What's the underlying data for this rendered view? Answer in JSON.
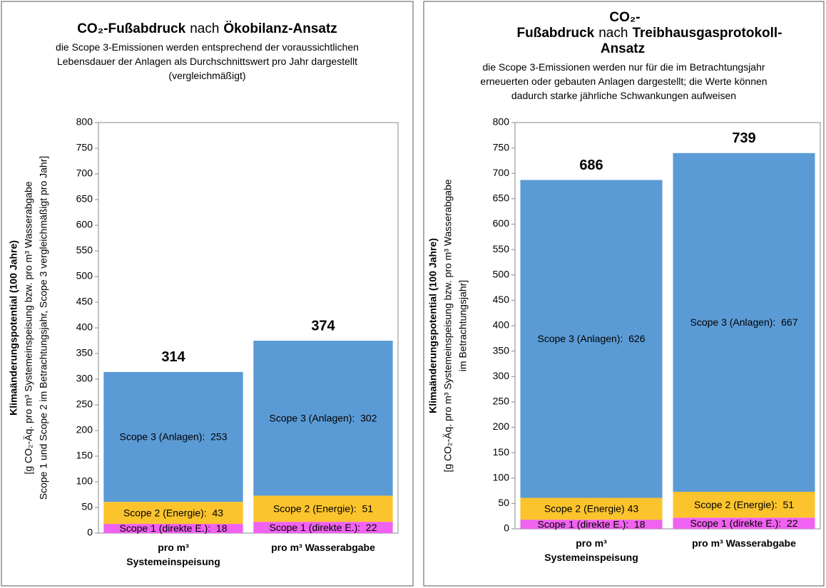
{
  "chart_data": [
    {
      "type": "stacked_bar",
      "title": [
        "CO₂-Fußabdruck",
        "nach",
        "Ökobilanz-Ansatz"
      ],
      "subtitle": "die Scope 3-Emissionen werden entsprechend der voraussichtlichen Lebensdauer der Anlagen als Durchschnittswert pro Jahr dargestellt (vergleichmäßigt)",
      "ylabel": [
        "Klimaänderungspotential (100 Jahre)",
        "[g CO₂-Äq. pro m³ Systemeinspeisung bzw. pro m³ Wasserabgabe",
        "Scope 1 und Scope 2 im Betrachtungsjahr, Scope 3 vergleichmäßigt pro Jahr]"
      ],
      "categories": [
        "pro m³ Systemeinspeisung",
        "pro m³ Wasserabgabe"
      ],
      "series": [
        {
          "color": "#f062f0",
          "values": [
            18,
            22
          ],
          "value_labels": [
            "Scope 1 (direkte E.):  18",
            "Scope 1 (direkte E.):  22"
          ]
        },
        {
          "color": "#fcc42c",
          "values": [
            43,
            51
          ],
          "value_labels": [
            "Scope 2 (Energie):  43",
            "Scope 2 (Energie):  51"
          ]
        },
        {
          "color": "#5b9bd5",
          "values": [
            253,
            302
          ],
          "value_labels": [
            "Scope 3 (Anlagen):  253",
            "Scope 3 (Anlagen):  302"
          ]
        }
      ],
      "totals": [
        314,
        374
      ],
      "ylim": [
        0,
        800
      ],
      "yticks": [
        0,
        50,
        100,
        150,
        200,
        250,
        300,
        350,
        400,
        450,
        500,
        550,
        600,
        650,
        700,
        750,
        800
      ],
      "grid": false
    },
    {
      "type": "stacked_bar",
      "title": [
        "CO₂-Fußabdruck",
        "nach",
        "Treibhausgasprotokoll-Ansatz"
      ],
      "subtitle": "die Scope 3-Emissionen werden nur für die im Betrachtungsjahr erneuerten oder gebauten Anlagen dargestellt; die Werte können dadurch starke jährliche Schwankungen aufweisen",
      "ylabel": [
        "Klimaänderungspotential (100 Jahre)",
        "[g CO₂-Äq. pro m³ Systemeinspeisung bzw. pro m³ Wasserabgabe",
        "im Betrachtungsjahr]"
      ],
      "categories": [
        "pro m³ Systemeinspeisung",
        "pro m³ Wasserabgabe"
      ],
      "series": [
        {
          "color": "#f062f0",
          "values": [
            18,
            22
          ],
          "value_labels": [
            "Scope 1 (direkte E.):  18",
            "Scope 1 (direkte E.):  22"
          ]
        },
        {
          "color": "#fcc42c",
          "values": [
            43,
            51
          ],
          "value_labels": [
            "Scope 2 (Energie) 43",
            "Scope 2 (Energie):  51"
          ]
        },
        {
          "color": "#5b9bd5",
          "values": [
            626,
            667
          ],
          "value_labels": [
            "Scope 3 (Anlagen):  626",
            "Scope 3 (Anlagen):  667"
          ]
        }
      ],
      "totals": [
        686,
        739
      ],
      "ylim": [
        0,
        800
      ],
      "yticks": [
        0,
        50,
        100,
        150,
        200,
        250,
        300,
        350,
        400,
        450,
        500,
        550,
        600,
        650,
        700,
        750,
        800
      ],
      "grid": false
    }
  ]
}
